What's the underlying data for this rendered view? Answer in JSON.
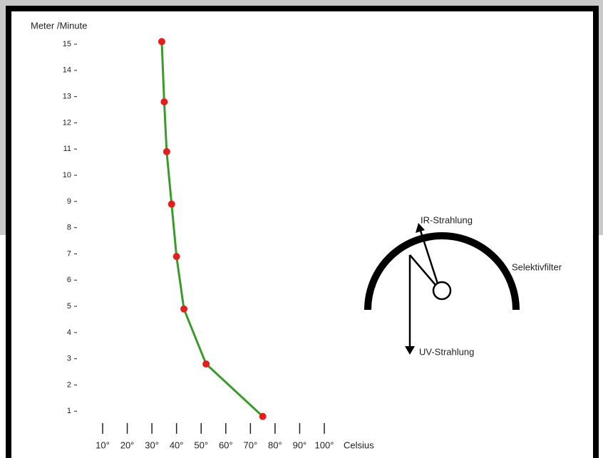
{
  "chart_data": {
    "type": "line",
    "ylabel": "Meter /Minute",
    "xlabel": "Celsius",
    "x": [
      34,
      35,
      36,
      38,
      40,
      43,
      52,
      75
    ],
    "series": [
      {
        "color": "#3a9a2a",
        "marker_color": "#e0201c",
        "values": [
          15.1,
          12.8,
          10.9,
          8.9,
          6.9,
          4.9,
          2.8,
          0.8
        ]
      }
    ],
    "xlim": [
      10,
      100
    ],
    "ylim": [
      0.6,
      15.3
    ],
    "xticks": [
      {
        "value": 10,
        "label": "10°"
      },
      {
        "value": 20,
        "label": "20°"
      },
      {
        "value": 30,
        "label": "30°"
      },
      {
        "value": 40,
        "label": "40°"
      },
      {
        "value": 50,
        "label": "50°"
      },
      {
        "value": 60,
        "label": "60°"
      },
      {
        "value": 70,
        "label": "70°"
      },
      {
        "value": 80,
        "label": "80°"
      },
      {
        "value": 90,
        "label": "90°"
      },
      {
        "value": 100,
        "label": "100°"
      }
    ],
    "yticks": [
      1,
      2,
      3,
      4,
      5,
      6,
      7,
      8,
      9,
      10,
      11,
      12,
      13,
      14,
      15
    ],
    "annotations": [
      "IR-Strahlung",
      "UV-Strahlung",
      "Selektivfilter"
    ]
  }
}
